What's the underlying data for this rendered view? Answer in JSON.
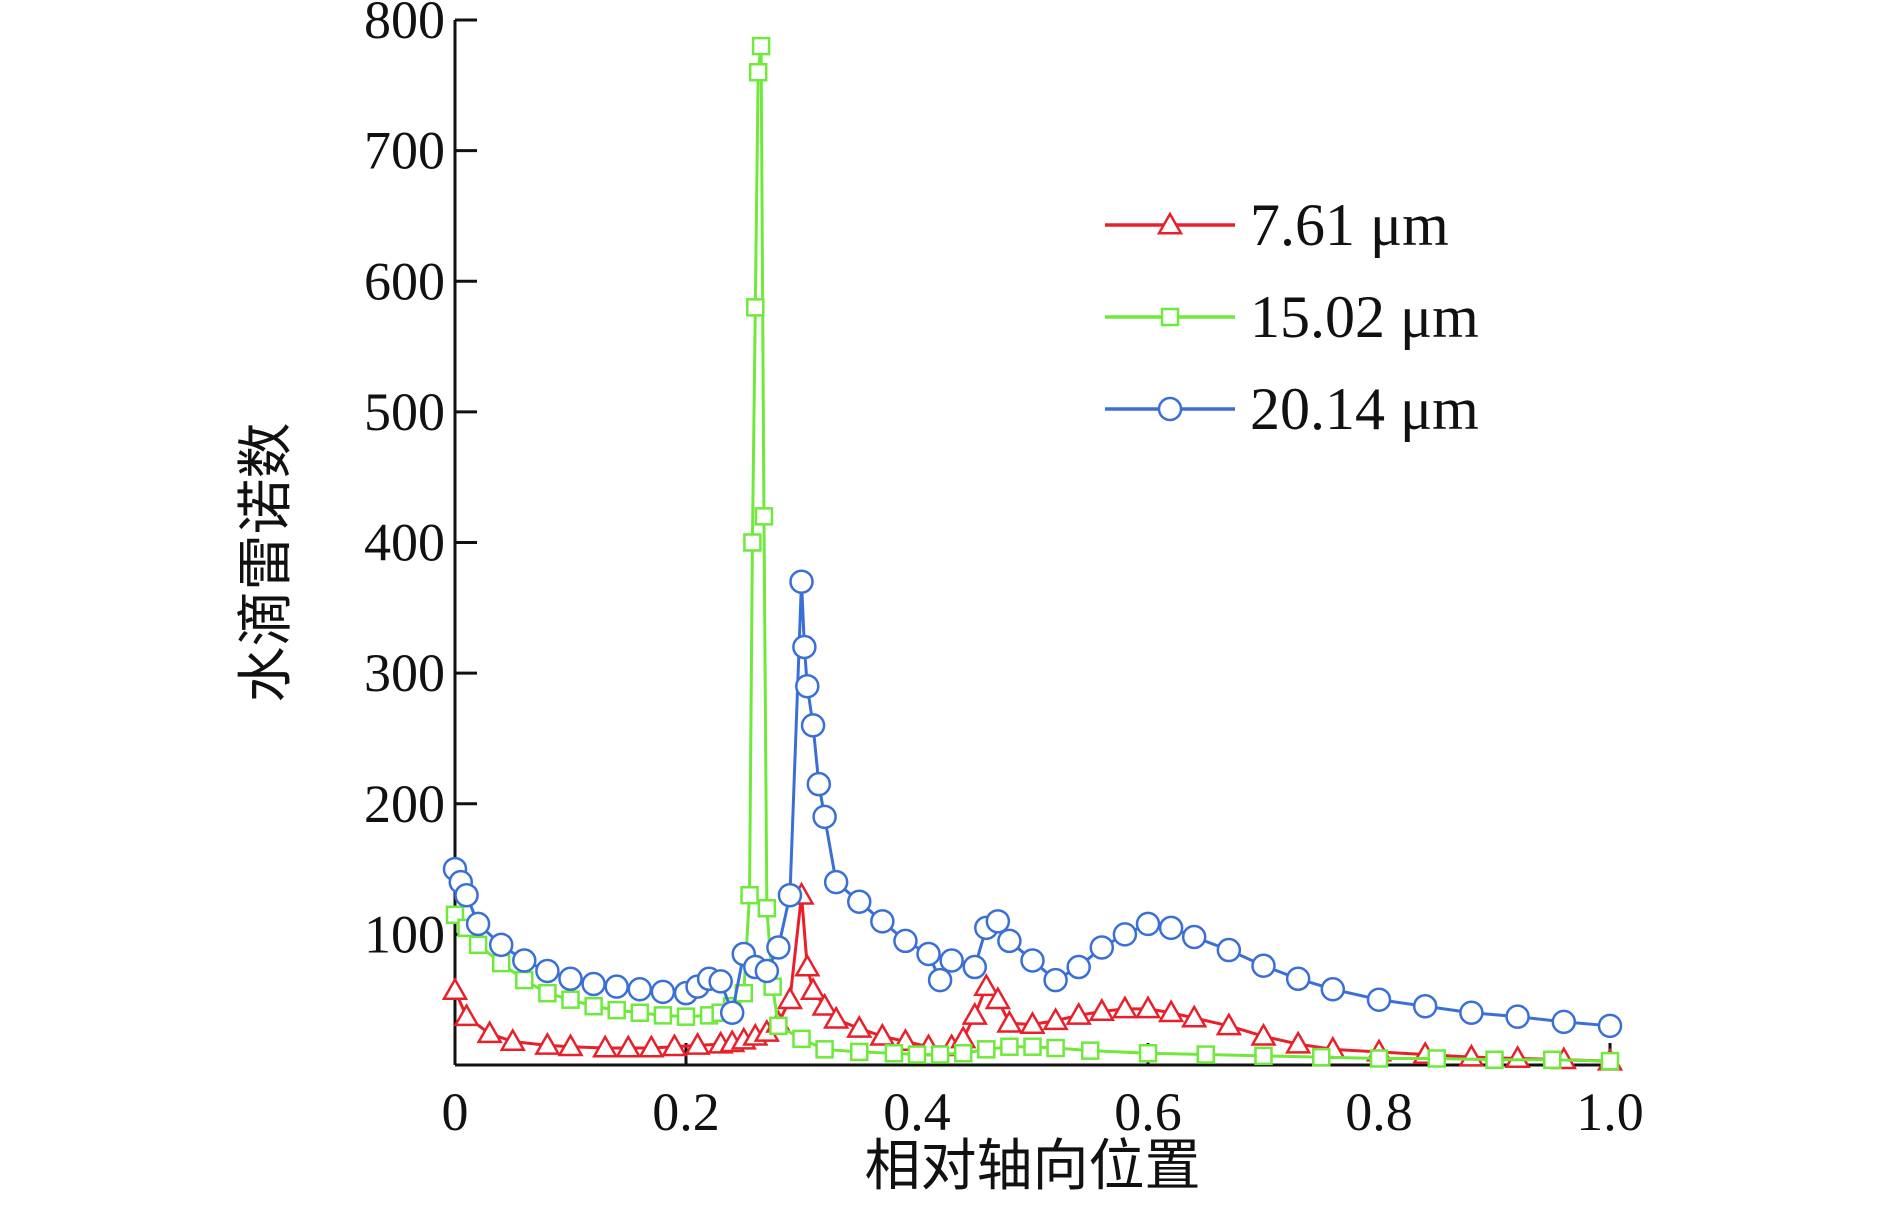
{
  "chart_data": {
    "type": "line",
    "xlabel": "相对轴向位置",
    "ylabel": "水滴雷诺数",
    "xlim": [
      0,
      1.0
    ],
    "ylim": [
      0,
      800
    ],
    "xticks": [
      "0",
      "0.2",
      "0.4",
      "0.6",
      "0.8",
      "1.0"
    ],
    "xtick_values": [
      0,
      0.2,
      0.4,
      0.6,
      0.8,
      1.0
    ],
    "yticks": [
      "100",
      "200",
      "300",
      "400",
      "500",
      "600",
      "700",
      "800"
    ],
    "ytick_values": [
      100,
      200,
      300,
      400,
      500,
      600,
      700,
      800
    ],
    "legend_position": "top-right",
    "series": [
      {
        "name": "7.61 μm",
        "color": "#e8202a",
        "marker": "triangle",
        "x": [
          0.0,
          0.01,
          0.03,
          0.05,
          0.08,
          0.1,
          0.13,
          0.15,
          0.17,
          0.19,
          0.21,
          0.23,
          0.24,
          0.25,
          0.26,
          0.27,
          0.28,
          0.29,
          0.3,
          0.305,
          0.31,
          0.32,
          0.33,
          0.35,
          0.37,
          0.39,
          0.41,
          0.43,
          0.44,
          0.45,
          0.46,
          0.47,
          0.48,
          0.5,
          0.52,
          0.54,
          0.56,
          0.58,
          0.6,
          0.62,
          0.64,
          0.67,
          0.7,
          0.73,
          0.76,
          0.8,
          0.84,
          0.88,
          0.92,
          0.96,
          1.0
        ],
        "y": [
          57,
          37,
          24,
          18,
          15,
          14,
          13,
          13,
          13,
          14,
          15,
          16,
          17,
          19,
          22,
          25,
          32,
          50,
          130,
          75,
          57,
          45,
          35,
          28,
          22,
          18,
          14,
          14,
          20,
          38,
          60,
          50,
          32,
          31,
          34,
          38,
          41,
          43,
          43,
          40,
          36,
          30,
          22,
          16,
          12,
          10,
          8,
          6,
          5,
          4,
          3
        ]
      },
      {
        "name": "15.02 μm",
        "color": "#6fe93c",
        "marker": "square",
        "x": [
          0.0,
          0.01,
          0.02,
          0.04,
          0.06,
          0.08,
          0.1,
          0.12,
          0.14,
          0.16,
          0.18,
          0.2,
          0.22,
          0.23,
          0.24,
          0.25,
          0.255,
          0.2575,
          0.26,
          0.2625,
          0.265,
          0.2675,
          0.27,
          0.275,
          0.28,
          0.3,
          0.32,
          0.35,
          0.38,
          0.4,
          0.42,
          0.44,
          0.46,
          0.48,
          0.5,
          0.52,
          0.55,
          0.6,
          0.65,
          0.7,
          0.75,
          0.8,
          0.85,
          0.9,
          0.95,
          1.0
        ],
        "y": [
          115,
          105,
          92,
          78,
          65,
          55,
          50,
          45,
          42,
          40,
          38,
          37,
          38,
          40,
          45,
          55,
          130,
          400,
          580,
          760,
          780,
          420,
          120,
          60,
          30,
          20,
          12,
          10,
          9,
          8,
          8,
          9,
          12,
          14,
          14,
          13,
          11,
          9,
          8,
          7,
          6,
          5,
          5,
          4,
          4,
          3
        ]
      },
      {
        "name": "20.14  μm",
        "color": "#3a6fd8",
        "marker": "circle",
        "x": [
          0.0,
          0.005,
          0.01,
          0.02,
          0.04,
          0.06,
          0.08,
          0.1,
          0.12,
          0.14,
          0.16,
          0.18,
          0.2,
          0.21,
          0.22,
          0.23,
          0.24,
          0.25,
          0.26,
          0.27,
          0.28,
          0.29,
          0.3,
          0.3025,
          0.305,
          0.31,
          0.315,
          0.32,
          0.33,
          0.35,
          0.37,
          0.39,
          0.41,
          0.42,
          0.43,
          0.45,
          0.46,
          0.47,
          0.48,
          0.5,
          0.52,
          0.54,
          0.56,
          0.58,
          0.6,
          0.62,
          0.64,
          0.67,
          0.7,
          0.73,
          0.76,
          0.8,
          0.84,
          0.88,
          0.92,
          0.96,
          1.0
        ],
        "y": [
          150,
          140,
          130,
          108,
          92,
          80,
          72,
          66,
          62,
          60,
          58,
          56,
          55,
          60,
          66,
          64,
          40,
          85,
          75,
          72,
          90,
          130,
          370,
          320,
          290,
          260,
          215,
          190,
          140,
          125,
          110,
          95,
          85,
          65,
          80,
          75,
          105,
          110,
          95,
          80,
          65,
          75,
          90,
          100,
          108,
          105,
          98,
          88,
          76,
          66,
          58,
          50,
          45,
          40,
          37,
          33,
          30
        ]
      }
    ]
  }
}
